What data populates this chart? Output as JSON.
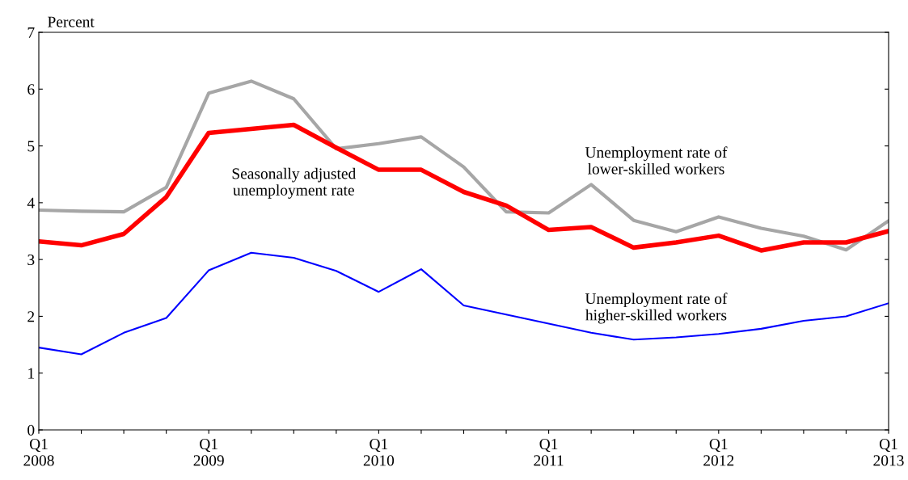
{
  "chart_data": {
    "type": "line",
    "ylabel": "Percent",
    "categories": [
      "Q1\n2008",
      null,
      null,
      null,
      "Q1\n2009",
      null,
      null,
      null,
      "Q1\n2010",
      null,
      null,
      null,
      "Q1\n2011",
      null,
      null,
      null,
      "Q1\n2012",
      null,
      null,
      null,
      "Q1\n2013"
    ],
    "series": [
      {
        "name": "Unemployment rate of\nlower-skilled workers",
        "color": "#a6a6a6",
        "values": [
          3.87,
          3.85,
          3.84,
          4.27,
          5.93,
          6.14,
          5.83,
          4.95,
          5.04,
          5.16,
          4.63,
          3.84,
          3.82,
          4.32,
          3.69,
          3.49,
          3.75,
          3.55,
          3.41,
          3.17,
          3.68
        ]
      },
      {
        "name": "Seasonally adjusted\nunemployment rate",
        "color": "#ff0000",
        "values": [
          3.32,
          3.25,
          3.45,
          4.1,
          5.23,
          5.3,
          5.37,
          4.97,
          4.58,
          4.58,
          4.19,
          3.95,
          3.52,
          3.57,
          3.21,
          3.3,
          3.42,
          3.16,
          3.3,
          3.3,
          3.5
        ]
      },
      {
        "name": "Unemployment rate of\nhigher-skilled workers",
        "color": "#0000ff",
        "values": [
          1.45,
          1.33,
          1.71,
          1.97,
          2.81,
          3.12,
          3.03,
          2.8,
          2.43,
          2.83,
          2.19,
          2.03,
          1.87,
          1.71,
          1.59,
          1.63,
          1.69,
          1.78,
          1.92,
          2.0,
          2.23
        ]
      }
    ],
    "ylim": [
      0,
      7
    ],
    "yticks": [
      0,
      1,
      2,
      3,
      4,
      5,
      6,
      7
    ],
    "grid": false,
    "legend": false,
    "marker": "none",
    "line_style": "solid"
  }
}
